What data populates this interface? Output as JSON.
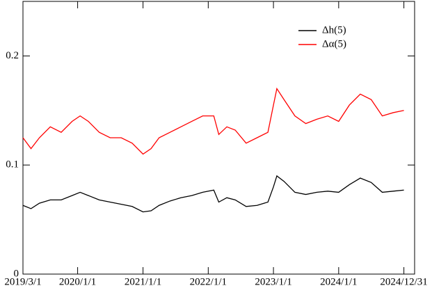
{
  "chart_data": {
    "type": "line",
    "x": [
      "2019/3/1",
      "2019/4/15",
      "2019/6/1",
      "2019/8/1",
      "2019/10/1",
      "2019/12/1",
      "2020/1/15",
      "2020/3/1",
      "2020/5/1",
      "2020/7/1",
      "2020/9/1",
      "2020/11/1",
      "2021/1/1",
      "2021/2/15",
      "2021/4/1",
      "2021/6/1",
      "2021/8/1",
      "2021/10/1",
      "2021/12/1",
      "2022/2/1",
      "2022/3/1",
      "2022/4/15",
      "2022/6/1",
      "2022/8/1",
      "2022/10/1",
      "2022/12/1",
      "2023/1/1",
      "2023/1/20",
      "2023/3/1",
      "2023/5/1",
      "2023/7/1",
      "2023/9/1",
      "2023/11/1",
      "2024/1/1",
      "2024/3/1",
      "2024/5/1",
      "2024/7/1",
      "2024/9/1",
      "2024/11/1",
      "2024/12/31"
    ],
    "series": [
      {
        "name": "Δh(5)",
        "color": "#000000",
        "values": [
          0.063,
          0.06,
          0.065,
          0.068,
          0.068,
          0.072,
          0.075,
          0.072,
          0.068,
          0.066,
          0.064,
          0.062,
          0.057,
          0.058,
          0.063,
          0.067,
          0.07,
          0.072,
          0.075,
          0.077,
          0.066,
          0.07,
          0.068,
          0.062,
          0.063,
          0.066,
          0.08,
          0.09,
          0.085,
          0.075,
          0.073,
          0.075,
          0.076,
          0.075,
          0.082,
          0.088,
          0.084,
          0.075,
          0.076,
          0.077
        ]
      },
      {
        "name": "Δα(5)",
        "color": "#ff0000",
        "values": [
          0.125,
          0.115,
          0.125,
          0.135,
          0.13,
          0.14,
          0.145,
          0.14,
          0.13,
          0.125,
          0.125,
          0.12,
          0.11,
          0.115,
          0.125,
          0.13,
          0.135,
          0.14,
          0.145,
          0.145,
          0.128,
          0.135,
          0.132,
          0.12,
          0.125,
          0.13,
          0.155,
          0.17,
          0.16,
          0.145,
          0.138,
          0.142,
          0.145,
          0.14,
          0.155,
          0.165,
          0.16,
          0.145,
          0.148,
          0.15
        ]
      }
    ],
    "xlim": [
      "2019/3/1",
      "2025/3/1"
    ],
    "xticks": [
      "2019/3/1",
      "2020/1/1",
      "2021/1/1",
      "2022/1/1",
      "2023/1/1",
      "2024/1/1",
      "2024/12/31"
    ],
    "ylim": [
      0,
      0.25
    ],
    "yticks": [
      0,
      0.1,
      0.2
    ],
    "legend": "upper right"
  }
}
